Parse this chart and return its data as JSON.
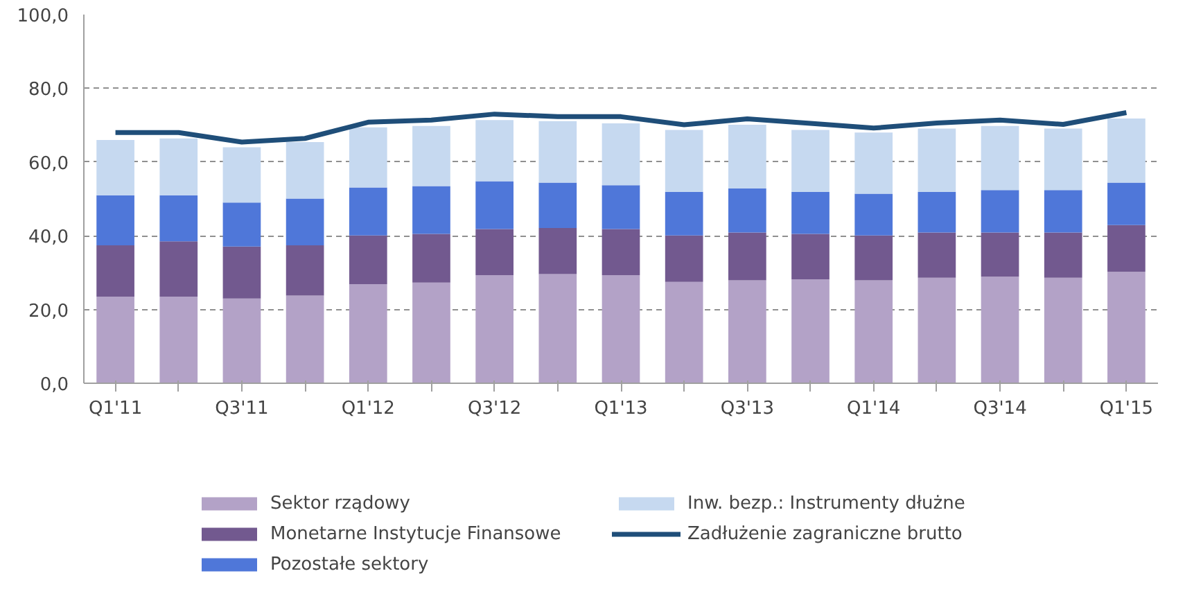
{
  "chart_data": {
    "type": "bar",
    "stacked": true,
    "categories": [
      "Q1'11",
      null,
      "Q3'11",
      null,
      "Q1'12",
      null,
      "Q3'12",
      null,
      "Q1'13",
      null,
      "Q3'13",
      null,
      "Q1'14",
      null,
      "Q3'14",
      null,
      "Q1'15"
    ],
    "series": [
      {
        "name": "Sektor rządowy",
        "color": "#b3a2c7",
        "values": [
          23.5,
          23.5,
          23.0,
          23.8,
          26.9,
          27.3,
          29.3,
          29.6,
          29.3,
          27.5,
          27.9,
          28.2,
          27.9,
          28.6,
          28.9,
          28.6,
          30.2
        ]
      },
      {
        "name": "Monetarne Instytucje Finansowe",
        "color": "#72598f",
        "values": [
          13.9,
          15.0,
          14.1,
          13.6,
          13.2,
          13.2,
          12.5,
          12.5,
          12.5,
          12.6,
          13.0,
          12.3,
          12.2,
          12.3,
          12.0,
          12.3,
          12.7
        ]
      },
      {
        "name": "Pozostałe sektory",
        "color": "#4f77d9",
        "values": [
          13.6,
          12.5,
          11.9,
          12.7,
          13.0,
          13.0,
          13.0,
          12.3,
          11.9,
          11.8,
          11.9,
          11.4,
          11.3,
          11.0,
          11.5,
          11.5,
          11.5
        ]
      },
      {
        "name": "Inw. bezp.: Instrumenty dłużne",
        "color": "#c6d9f0",
        "values": [
          15.0,
          15.4,
          15.0,
          15.3,
          16.3,
          16.3,
          16.6,
          16.7,
          16.8,
          16.8,
          17.3,
          16.8,
          16.6,
          17.2,
          17.4,
          16.7,
          17.4
        ]
      },
      {
        "name": "Zadłużenie zagraniczne brutto",
        "type": "line",
        "color": "#1f4e79",
        "values": [
          68.0,
          68.0,
          65.4,
          66.4,
          70.8,
          71.4,
          73.0,
          72.3,
          72.3,
          70.1,
          71.7,
          70.5,
          69.2,
          70.6,
          71.4,
          70.2,
          73.4
        ]
      }
    ],
    "ylim": [
      0,
      100
    ],
    "yticks": [
      {
        "value": 0,
        "label": "0,0"
      },
      {
        "value": 20,
        "label": "20,0"
      },
      {
        "value": 40,
        "label": "40,0"
      },
      {
        "value": 60,
        "label": "60,0"
      },
      {
        "value": 80,
        "label": "80,0"
      },
      {
        "value": 100,
        "label": "100,0"
      }
    ],
    "grid": "y",
    "legend": "bottom",
    "marker": "none",
    "line_style": "solid"
  }
}
